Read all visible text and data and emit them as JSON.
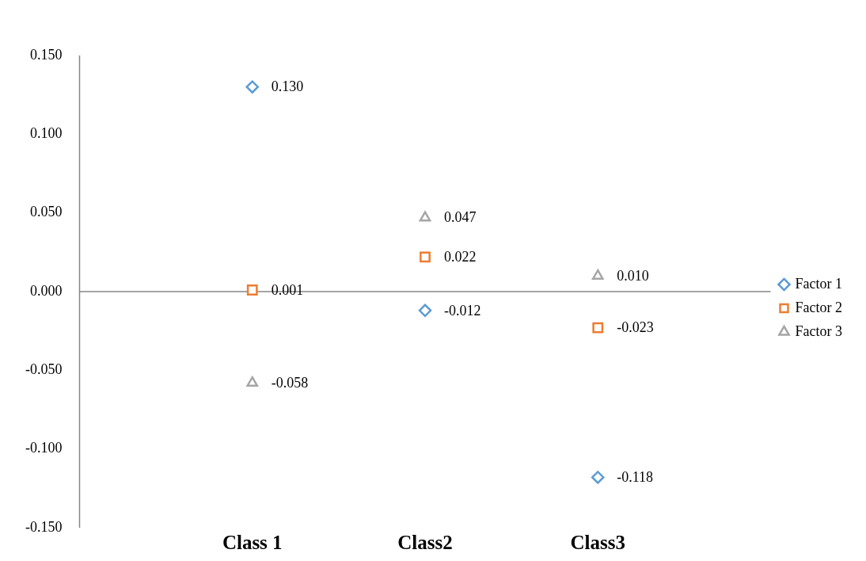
{
  "chart_data": {
    "type": "scatter",
    "categories": [
      "Class 1",
      "Class2",
      "Class3"
    ],
    "series": [
      {
        "name": "Factor 1",
        "color": "#5b9bd5",
        "marker": "diamond",
        "values": [
          0.13,
          -0.012,
          -0.118
        ],
        "value_labels": [
          "0.130",
          "-0.012",
          "-0.118"
        ]
      },
      {
        "name": "Factor 2",
        "color": "#ed7d31",
        "marker": "square",
        "values": [
          0.001,
          0.022,
          -0.023
        ],
        "value_labels": [
          "0.001",
          "0.022",
          "-0.023"
        ]
      },
      {
        "name": "Factor 3",
        "color": "#a5a5a5",
        "marker": "triangle",
        "values": [
          -0.058,
          0.047,
          0.01
        ],
        "value_labels": [
          "-0.058",
          "0.047",
          "0.010"
        ]
      }
    ],
    "ylim": [
      -0.15,
      0.15
    ],
    "yticks": [
      {
        "value": -0.15,
        "label": "-0.150"
      },
      {
        "value": -0.1,
        "label": "-0.100"
      },
      {
        "value": -0.05,
        "label": "-0.050"
      },
      {
        "value": 0,
        "label": "0.000"
      },
      {
        "value": 0.05,
        "label": "0.050"
      },
      {
        "value": 0.1,
        "label": "0.100"
      },
      {
        "value": 0.15,
        "label": "0.150"
      }
    ],
    "ref_lines": [
      {
        "axis": "y",
        "value": 0,
        "color": "#868686"
      }
    ],
    "grid": false,
    "legend": "right"
  }
}
